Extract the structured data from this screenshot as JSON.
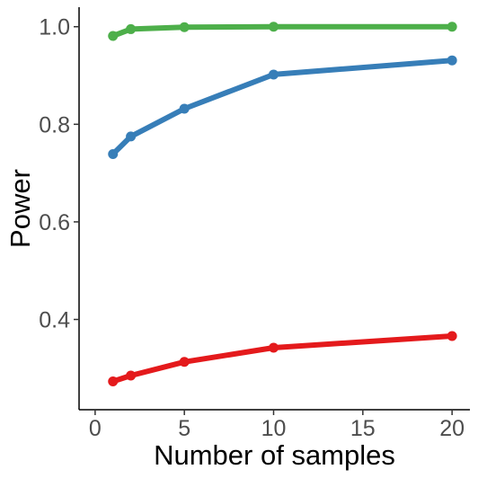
{
  "chart_data": {
    "type": "line",
    "title": "",
    "xlabel": "Number of samples",
    "ylabel": "Power",
    "xlim": [
      -0.9,
      21
    ],
    "ylim": [
      0.215,
      1.04
    ],
    "xticks": [
      0,
      5,
      10,
      15,
      20
    ],
    "xtick_labels": [
      "0",
      "5",
      "10",
      "15",
      "20"
    ],
    "yticks": [
      0.4,
      0.6,
      0.8,
      1.0
    ],
    "ytick_labels": [
      "0.4",
      "0.6",
      "0.8",
      "1.0"
    ],
    "grid": false,
    "legend": "none",
    "x": [
      1,
      2,
      5,
      10,
      20
    ],
    "series": [
      {
        "color": "#4daf4a",
        "values": [
          0.981,
          0.995,
          0.999,
          1.0,
          1.0
        ]
      },
      {
        "color": "#377eb8",
        "values": [
          0.739,
          0.775,
          0.832,
          0.902,
          0.931
        ]
      },
      {
        "color": "#e41a1c",
        "values": [
          0.273,
          0.285,
          0.313,
          0.342,
          0.366
        ]
      }
    ]
  }
}
